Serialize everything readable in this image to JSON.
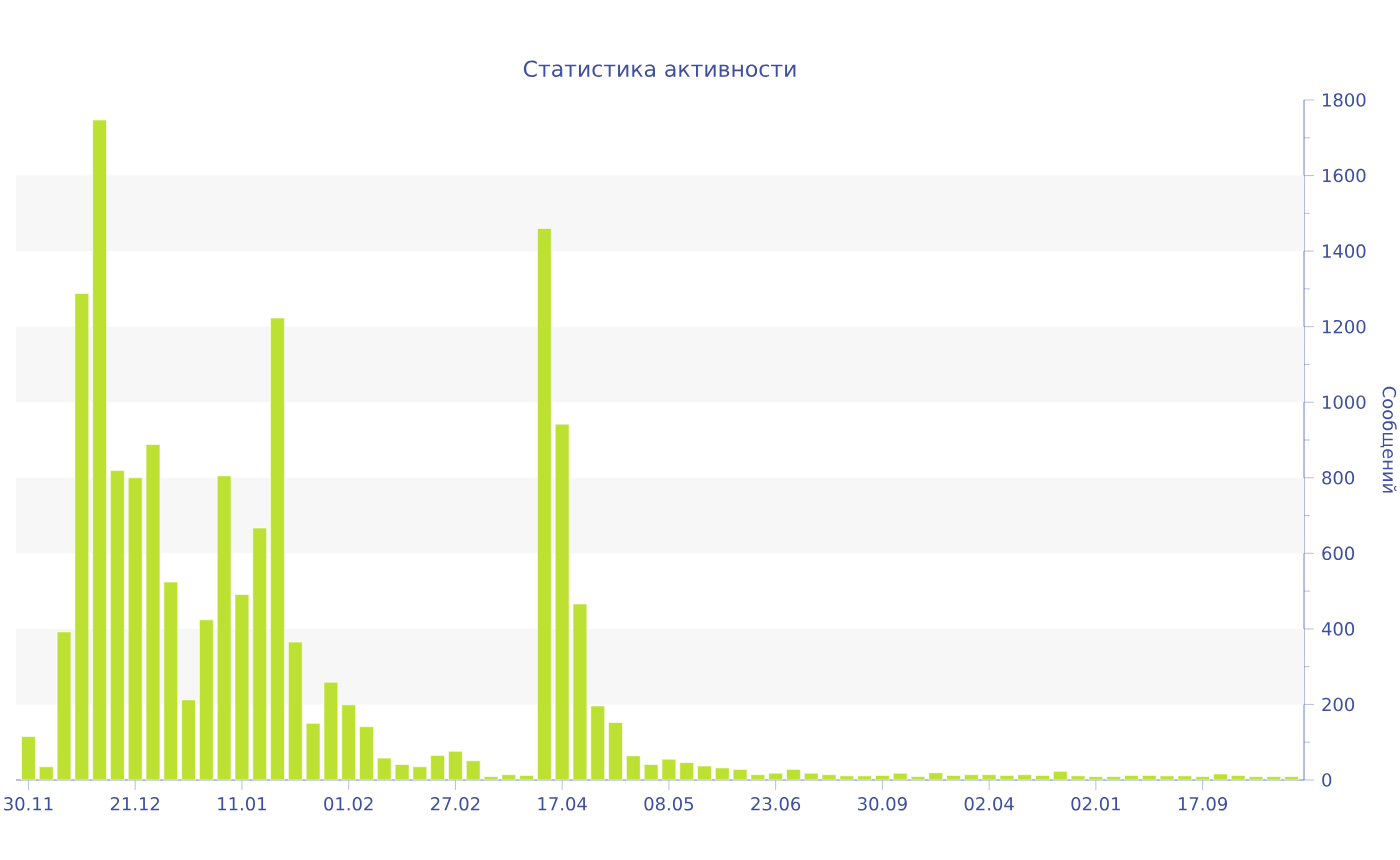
{
  "chart_data": {
    "type": "bar",
    "title": "Статистика активности",
    "ylabel": "Сообщений",
    "categories": [
      "30.11",
      null,
      null,
      null,
      null,
      null,
      "21.12",
      null,
      null,
      null,
      null,
      null,
      "11.01",
      null,
      null,
      null,
      null,
      null,
      "01.02",
      null,
      null,
      null,
      null,
      null,
      "27.02",
      null,
      null,
      null,
      null,
      null,
      "17.04",
      null,
      null,
      null,
      null,
      null,
      "08.05",
      null,
      null,
      null,
      null,
      null,
      "23.06",
      null,
      null,
      null,
      null,
      null,
      "30.09",
      null,
      null,
      null,
      null,
      null,
      "02.04",
      null,
      null,
      null,
      null,
      null,
      "02.01",
      null,
      null,
      null,
      null,
      null,
      "17.09",
      null,
      null,
      null,
      null,
      null
    ],
    "values": [
      115,
      35,
      392,
      1288,
      1747,
      819,
      800,
      888,
      524,
      212,
      424,
      805,
      491,
      667,
      1223,
      365,
      150,
      259,
      199,
      141,
      58,
      41,
      35,
      65,
      76,
      51,
      9,
      14,
      12,
      1460,
      942,
      466,
      196,
      152,
      64,
      41,
      55,
      46,
      37,
      32,
      28,
      14,
      18,
      28,
      18,
      14,
      11,
      11,
      12,
      18,
      9,
      19,
      12,
      14,
      14,
      12,
      14,
      12,
      23,
      11,
      9,
      9,
      12,
      12,
      11,
      11,
      9,
      16,
      12,
      9,
      9,
      9
    ],
    "color": "#bce132",
    "ylim": [
      0,
      1800
    ],
    "yticks": [
      0,
      200,
      400,
      600,
      800,
      1000,
      1200,
      1400,
      1600,
      1800
    ],
    "bands": [
      {
        "axis": "y",
        "from": 200,
        "to": 400,
        "color": "#f7f7f7"
      },
      {
        "axis": "y",
        "from": 600,
        "to": 800,
        "color": "#f7f7f7"
      },
      {
        "axis": "y",
        "from": 1000,
        "to": 1200,
        "color": "#f7f7f7"
      },
      {
        "axis": "y",
        "from": 1400,
        "to": 1600,
        "color": "#f7f7f7"
      }
    ],
    "grid": false
  }
}
